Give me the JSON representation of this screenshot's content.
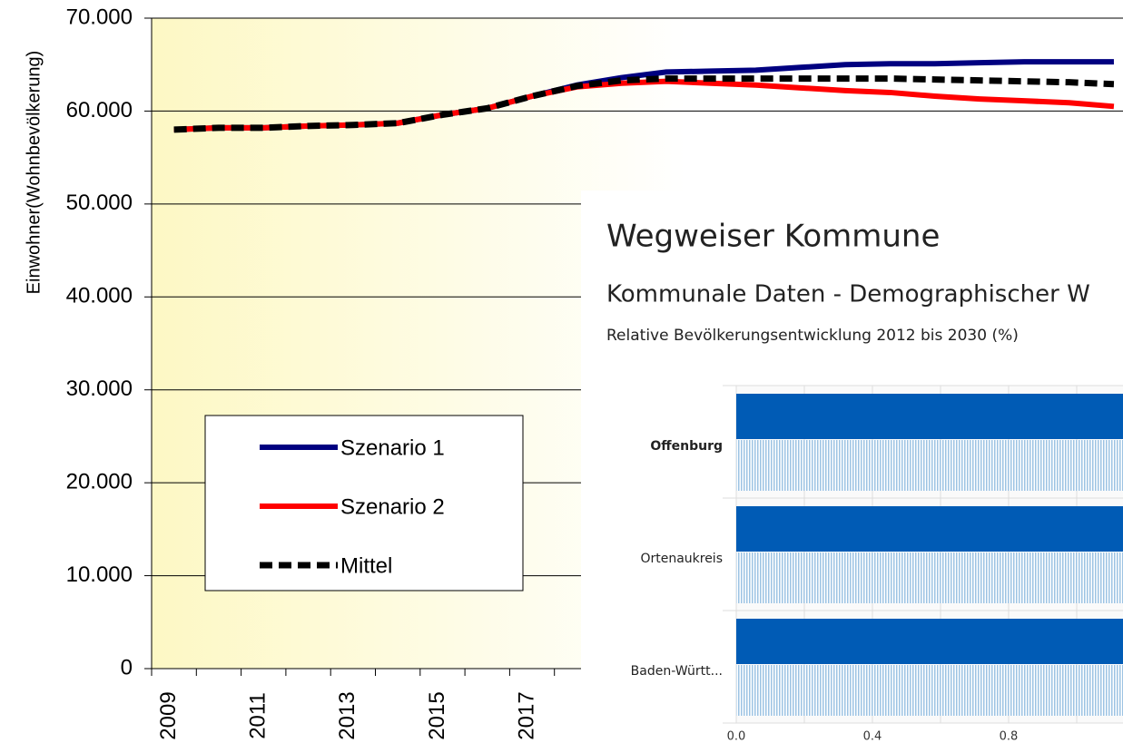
{
  "chart_data": [
    {
      "type": "line",
      "y_label": "Einwohner(Wohnbevölkerung)",
      "categories": [
        "2009",
        null,
        "2011",
        null,
        "2013",
        null,
        "2015",
        null,
        "2017",
        null,
        null,
        null,
        null,
        null,
        null,
        null,
        null,
        null,
        null,
        null,
        null,
        null
      ],
      "series": [
        {
          "name": "Szenario 1",
          "color": "#000080",
          "values": [
            58000,
            58200,
            58200,
            58400,
            58500,
            58700,
            59600,
            60300,
            61600,
            62800,
            63600,
            64200,
            64300,
            64400,
            64700,
            65000,
            65100,
            65100,
            65200,
            65300,
            65300,
            65300
          ]
        },
        {
          "name": "Szenario 2",
          "color": "#ff0000",
          "values": [
            58000,
            58200,
            58200,
            58400,
            58500,
            58700,
            59600,
            60300,
            61600,
            62600,
            63000,
            63200,
            63000,
            62800,
            62500,
            62200,
            62000,
            61600,
            61300,
            61100,
            60900,
            60500
          ]
        },
        {
          "name": "Mittel",
          "color": "#000000",
          "dashed": true,
          "values": [
            58000,
            58200,
            58200,
            58400,
            58500,
            58700,
            59600,
            60300,
            61600,
            62700,
            63300,
            63500,
            63500,
            63500,
            63500,
            63500,
            63500,
            63400,
            63300,
            63200,
            63100,
            62900
          ]
        }
      ],
      "ylim": [
        0,
        70000
      ],
      "yticks": [
        0,
        {
          "value": 10000,
          "label": "10.000"
        },
        {
          "value": 20000,
          "label": "20.000"
        },
        {
          "value": 30000,
          "label": "30.000"
        },
        {
          "value": 40000,
          "label": "40.000"
        },
        {
          "value": 50000,
          "label": "50.000"
        },
        {
          "value": 60000,
          "label": "60.000"
        },
        {
          "value": 70000,
          "label": "70.000"
        }
      ],
      "grid": true,
      "legend": "lower-left"
    },
    {
      "type": "barh",
      "header": "Wegweiser Kommune",
      "subheader": "Kommunale Daten - Demographischer W",
      "title": "Relative Bevölkerungsentwicklung 2012 bis 2030 (%)",
      "categories": [
        "Offenburg",
        "Ortenaukreis",
        "Baden-Württ..."
      ],
      "highlight": 0,
      "series": [
        {
          "color": "#005bb5",
          "values": [
            1.2,
            1.2,
            1.2
          ]
        },
        {
          "color": "#9cc3e3",
          "hatched": true,
          "values": [
            1.2,
            1.2,
            1.2
          ]
        }
      ],
      "xlim": [
        0,
        1.2
      ],
      "xticks": [
        {
          "value": 0,
          "label": "0.0"
        },
        0.4,
        0.8
      ],
      "xminor": [
        0.2,
        0.6,
        1.0
      ],
      "grid": true
    }
  ]
}
